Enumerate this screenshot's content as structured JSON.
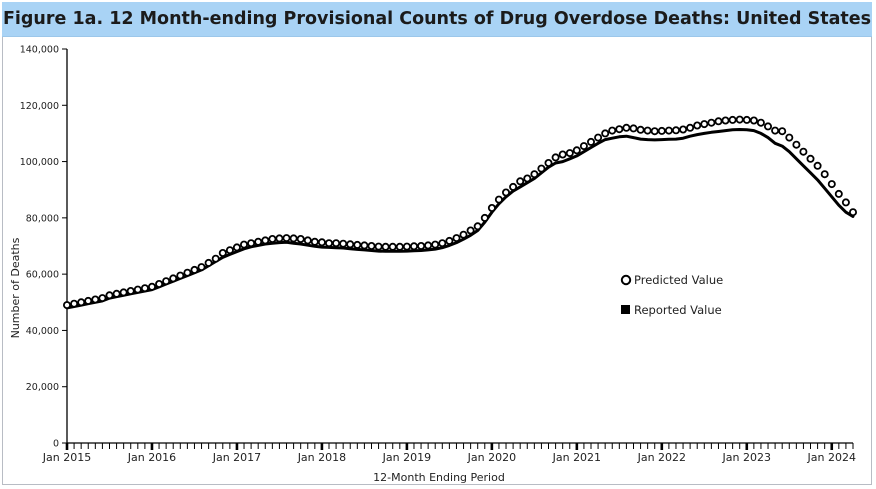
{
  "chart_data": {
    "type": "line",
    "title": "Figure 1a. 12 Month-ending Provisional Counts of Drug Overdose Deaths: United States",
    "xlabel": "12-Month Ending Period",
    "ylabel": "Number of Deaths",
    "ylim": [
      0,
      140000
    ],
    "yticks": [
      "0",
      "20,000",
      "40,000",
      "60,000",
      "80,000",
      "100,000",
      "120,000",
      "140,000"
    ],
    "xtick_labels": [
      "Jan 2015",
      "Jan 2016",
      "Jan 2017",
      "Jan 2018",
      "Jan 2019",
      "Jan 2020",
      "Jan 2021",
      "Jan 2022",
      "Jan 2023",
      "Jan 2024"
    ],
    "x_start": "Jan 2015",
    "x_end": "Sep 2024",
    "legend": {
      "placement": "right-center"
    },
    "series": [
      {
        "name": "Predicted Value",
        "marker": "open-circle",
        "values": [
          49000,
          49500,
          50000,
          50500,
          51000,
          51500,
          52500,
          53000,
          53500,
          54000,
          54500,
          55000,
          55500,
          56500,
          57500,
          58500,
          59500,
          60500,
          61500,
          62500,
          64000,
          65500,
          67500,
          68500,
          69500,
          70500,
          71000,
          71500,
          72000,
          72500,
          72700,
          72800,
          72700,
          72500,
          72000,
          71500,
          71300,
          71000,
          71000,
          70800,
          70600,
          70400,
          70200,
          70000,
          69800,
          69700,
          69700,
          69700,
          69800,
          69900,
          70000,
          70200,
          70500,
          71000,
          71800,
          72800,
          74000,
          75500,
          77000,
          80000,
          83500,
          86500,
          89000,
          91000,
          93000,
          94000,
          95500,
          97500,
          99500,
          101500,
          102500,
          103000,
          104000,
          105500,
          107000,
          108500,
          110000,
          111000,
          111500,
          112000,
          111800,
          111300,
          111000,
          110800,
          110900,
          111000,
          111100,
          111400,
          112000,
          112800,
          113300,
          113800,
          114300,
          114600,
          114800,
          114900,
          114800,
          114600,
          113800,
          112500,
          111000,
          110800,
          108500,
          106000,
          103500,
          101000,
          98500,
          95500,
          92000,
          88500,
          85500,
          82000
        ]
      },
      {
        "name": "Reported Value",
        "marker": "filled-square",
        "values": [
          48000,
          48500,
          49000,
          49500,
          50000,
          50500,
          51500,
          52000,
          52500,
          53000,
          53500,
          54000,
          54500,
          55500,
          56500,
          57500,
          58500,
          59500,
          60500,
          61500,
          63000,
          64500,
          66000,
          67000,
          68000,
          69000,
          69700,
          70200,
          70700,
          71000,
          71200,
          71300,
          71000,
          70700,
          70300,
          69900,
          69600,
          69500,
          69400,
          69300,
          69000,
          68800,
          68600,
          68400,
          68200,
          68100,
          68100,
          68100,
          68200,
          68300,
          68400,
          68600,
          68900,
          69400,
          70200,
          71200,
          72400,
          73800,
          75500,
          78500,
          82000,
          85000,
          87500,
          89500,
          91000,
          92500,
          94000,
          96000,
          98000,
          99500,
          100000,
          101000,
          102000,
          103500,
          105000,
          106500,
          107800,
          108300,
          108800,
          109000,
          108500,
          108000,
          107800,
          107700,
          107800,
          107900,
          108000,
          108300,
          109000,
          109600,
          110000,
          110400,
          110700,
          111000,
          111300,
          111400,
          111300,
          111000,
          110000,
          108500,
          106500,
          105500,
          103500,
          101000,
          98500,
          96000,
          93500,
          90500,
          87500,
          84500,
          82000,
          80500
        ]
      }
    ]
  }
}
